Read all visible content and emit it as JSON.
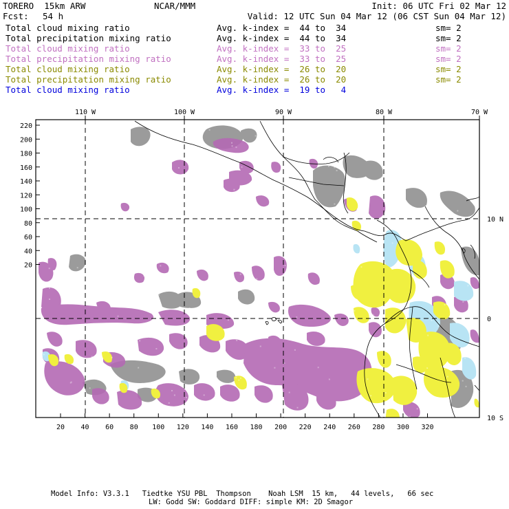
{
  "header": {
    "model_name": "TORERO  15km ARW",
    "institution": "NCAR/MMM",
    "init": "Init: 06 UTC Fri 02 Mar 12",
    "fcst_label": "Fcst:",
    "fcst_value": "54 h",
    "valid": "Valid: 12 UTC Sun 04 Mar 12 (06 CST Sun 04 Mar 12)"
  },
  "legend": [
    {
      "field": "Total cloud mixing ratio",
      "index": "Avg. k-index =  44 to  34",
      "smooth": "sm= 2",
      "color": "#000000"
    },
    {
      "field": "Total precipitation mixing ratio",
      "index": "Avg. k-index =  44 to  34",
      "smooth": "sm= 2",
      "color": "#000000"
    },
    {
      "field": "Total cloud mixing ratio",
      "index": "Avg. k-index =  33 to  25",
      "smooth": "sm= 2",
      "color": "#c070c0"
    },
    {
      "field": "Total precipitation mixing ratio",
      "index": "Avg. k-index =  33 to  25",
      "smooth": "sm= 2",
      "color": "#c070c0"
    },
    {
      "field": "Total cloud mixing ratio",
      "index": "Avg. k-index =  26 to  20",
      "smooth": "sm= 2",
      "color": "#8a8a00"
    },
    {
      "field": "Total precipitation mixing ratio",
      "index": "Avg. k-index =  26 to  20",
      "smooth": "sm= 2",
      "color": "#8a8a00"
    },
    {
      "field": "Total cloud mixing ratio",
      "index": "Avg. k-index =  19 to   4",
      "smooth": "",
      "color": "#0000dd"
    }
  ],
  "map": {
    "lon_labels": [
      "110 W",
      "100 W",
      "90 W",
      "80 W",
      "70 W"
    ],
    "lat_labels": [
      "10 N",
      "0",
      "10 S"
    ],
    "y_ticks": [
      "220",
      "200",
      "180",
      "160",
      "140",
      "120",
      "100",
      "80",
      "60",
      "40",
      "20"
    ],
    "x_ticks": [
      "20",
      "40",
      "60",
      "80",
      "100",
      "120",
      "140",
      "160",
      "180",
      "200",
      "220",
      "240",
      "260",
      "280",
      "300",
      "320"
    ],
    "colors": {
      "high": "#8a8a8a",
      "mid": "#b46ab4",
      "low": "#f0f040",
      "lowest": "#b8e4f4"
    }
  },
  "footer": {
    "line1": "Model Info: V3.3.1   Tiedtke YSU PBL  Thompson    Noah LSM  15 km,   44 levels,   66 sec",
    "line2": "LW: Godd SW: Goddard DIFF: simple KM: 2D Smagor"
  }
}
